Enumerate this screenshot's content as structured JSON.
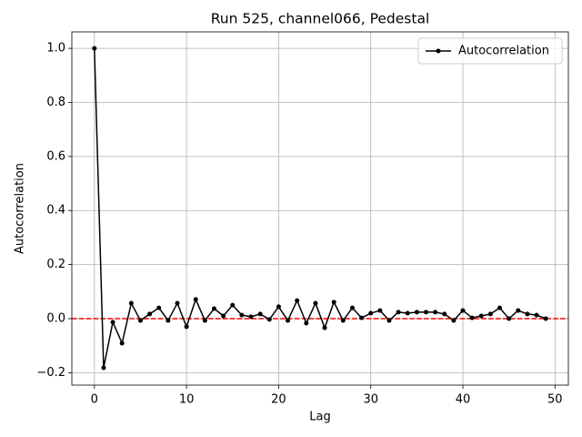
{
  "chart_data": {
    "type": "line",
    "title": "Run 525, channel066, Pedestal",
    "xlabel": "Lag",
    "ylabel": "Autocorrelation",
    "x": [
      0,
      1,
      2,
      3,
      4,
      5,
      6,
      7,
      8,
      9,
      10,
      11,
      12,
      13,
      14,
      15,
      16,
      17,
      18,
      19,
      20,
      21,
      22,
      23,
      24,
      25,
      26,
      27,
      28,
      29,
      30,
      31,
      32,
      33,
      34,
      35,
      36,
      37,
      38,
      39,
      40,
      41,
      42,
      43,
      44,
      45,
      46,
      47,
      48,
      49
    ],
    "series": [
      {
        "name": "Autocorrelation",
        "color": "#000000",
        "values": [
          1.0,
          -0.182,
          -0.013,
          -0.091,
          0.057,
          -0.007,
          0.017,
          0.04,
          -0.007,
          0.057,
          -0.03,
          0.071,
          -0.007,
          0.037,
          0.01,
          0.05,
          0.013,
          0.007,
          0.017,
          -0.003,
          0.044,
          -0.007,
          0.067,
          -0.017,
          0.057,
          -0.034,
          0.061,
          -0.007,
          0.04,
          0.003,
          0.02,
          0.03,
          -0.007,
          0.024,
          0.02,
          0.024,
          0.024,
          0.024,
          0.017,
          -0.007,
          0.03,
          0.003,
          0.01,
          0.017,
          0.04,
          0.0,
          0.03,
          0.017,
          0.013,
          0.0
        ]
      }
    ],
    "hline": {
      "value": 0,
      "color": "#ff0000",
      "dashed": true
    },
    "xlim": [
      -2.45,
      51.45
    ],
    "xticks": [
      0,
      10,
      20,
      30,
      40,
      50
    ],
    "ylim": [
      -0.246,
      1.061
    ],
    "yticks": [
      {
        "value": -0.2,
        "label": "−0.2"
      },
      {
        "value": 0,
        "label": "0.0"
      },
      {
        "value": 0.2,
        "label": "0.2"
      },
      {
        "value": 0.4,
        "label": "0.4"
      },
      {
        "value": 0.6,
        "label": "0.6"
      },
      {
        "value": 0.8,
        "label": "0.8"
      },
      {
        "value": 1.0,
        "label": "1.0"
      }
    ],
    "grid": true,
    "legend": "upper right"
  }
}
